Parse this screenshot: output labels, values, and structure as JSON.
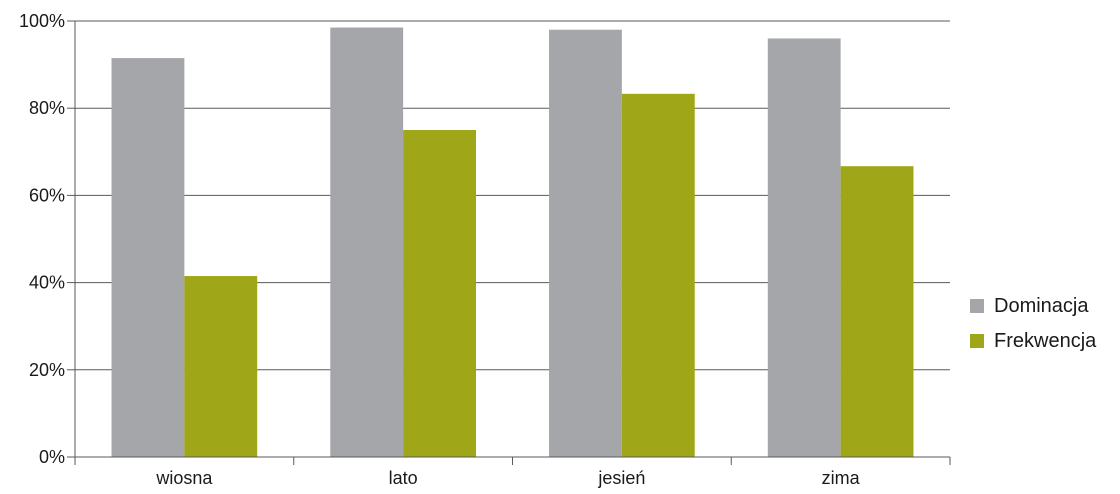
{
  "chart_data": {
    "type": "bar",
    "title": "",
    "xlabel": "",
    "ylabel": "",
    "categories": [
      "wiosna",
      "lato",
      "jesień",
      "zima"
    ],
    "series": [
      {
        "name": "Dominacja",
        "color": "#a5a6a9",
        "values": [
          91.5,
          98.5,
          98.0,
          96.0
        ]
      },
      {
        "name": "Frekwencja",
        "color": "#9fa617",
        "values": [
          41.5,
          75.0,
          83.3,
          66.7
        ]
      }
    ],
    "ylim": [
      0,
      100
    ],
    "yticks": [
      "0%",
      "20%",
      "40%",
      "60%",
      "80%",
      "100%"
    ],
    "grid": true,
    "legend_position": "right"
  }
}
